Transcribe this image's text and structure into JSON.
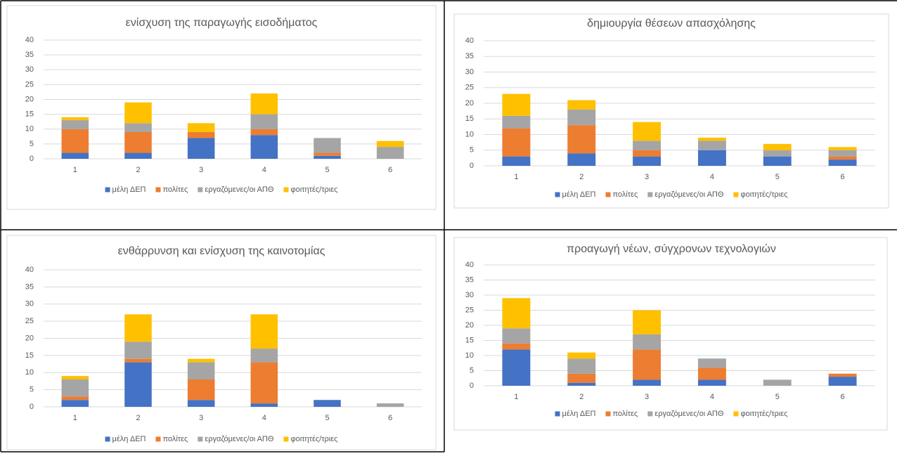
{
  "chart_data": [
    {
      "type": "bar",
      "stacked": true,
      "title": "ενίσχυση της παραγωγής εισοδήματος",
      "categories": [
        "1",
        "2",
        "3",
        "4",
        "5",
        "6"
      ],
      "series": [
        {
          "name": "μέλη ΔΕΠ",
          "color": "#4472c4",
          "values": [
            2,
            2,
            7,
            8,
            1,
            0
          ]
        },
        {
          "name": "πολίτες",
          "color": "#ed7d31",
          "values": [
            8,
            7,
            2,
            2,
            1,
            0
          ]
        },
        {
          "name": "εργαζόμενες/οι ΑΠΘ",
          "color": "#a5a5a5",
          "values": [
            3,
            3,
            0,
            5,
            5,
            4
          ]
        },
        {
          "name": "φοιτητές/τριες",
          "color": "#ffc000",
          "values": [
            1,
            7,
            3,
            7,
            0,
            2
          ]
        }
      ],
      "ylim": [
        0,
        40
      ],
      "yticks": [
        0,
        5,
        10,
        15,
        20,
        25,
        30,
        35,
        40
      ],
      "grid": true,
      "legend": "bottom"
    },
    {
      "type": "bar",
      "stacked": true,
      "title": "δημιουργία θέσεων απασχόλησης",
      "categories": [
        "1",
        "2",
        "3",
        "4",
        "5",
        "6"
      ],
      "series": [
        {
          "name": "μέλη ΔΕΠ",
          "color": "#4472c4",
          "values": [
            3,
            4,
            3,
            5,
            3,
            2
          ]
        },
        {
          "name": "πολίτες",
          "color": "#ed7d31",
          "values": [
            9,
            9,
            2,
            0,
            0,
            1
          ]
        },
        {
          "name": "εργαζόμενες/οι ΑΠΘ",
          "color": "#a5a5a5",
          "values": [
            4,
            5,
            3,
            3,
            2,
            2
          ]
        },
        {
          "name": "φοιτητές/τριες",
          "color": "#ffc000",
          "values": [
            7,
            3,
            6,
            1,
            2,
            1
          ]
        }
      ],
      "ylim": [
        0,
        40
      ],
      "yticks": [
        0,
        5,
        10,
        15,
        20,
        25,
        30,
        35,
        40
      ],
      "grid": true,
      "legend": "bottom"
    },
    {
      "type": "bar",
      "stacked": true,
      "title": "ενθάρρυνση και ενίσχυση της καινοτομίας",
      "categories": [
        "1",
        "2",
        "3",
        "4",
        "5",
        "6"
      ],
      "series": [
        {
          "name": "μέλη ΔΕΠ",
          "color": "#4472c4",
          "values": [
            2,
            13,
            2,
            1,
            2,
            0
          ]
        },
        {
          "name": "πολίτες",
          "color": "#ed7d31",
          "values": [
            1,
            1,
            6,
            12,
            0,
            0
          ]
        },
        {
          "name": "εργαζόμενες/οι ΑΠΘ",
          "color": "#a5a5a5",
          "values": [
            5,
            5,
            5,
            4,
            0,
            1
          ]
        },
        {
          "name": "φοιτητές/τριες",
          "color": "#ffc000",
          "values": [
            1,
            8,
            1,
            10,
            0,
            0
          ]
        }
      ],
      "ylim": [
        0,
        40
      ],
      "yticks": [
        0,
        5,
        10,
        15,
        20,
        25,
        30,
        35,
        40
      ],
      "grid": true,
      "legend": "bottom"
    },
    {
      "type": "bar",
      "stacked": true,
      "title": "προαγωγή νέων, σύγχρονων τεχνολογιών",
      "categories": [
        "1",
        "2",
        "3",
        "4",
        "5",
        "6"
      ],
      "series": [
        {
          "name": "μέλη ΔΕΠ",
          "color": "#4472c4",
          "values": [
            12,
            1,
            2,
            2,
            0,
            3
          ]
        },
        {
          "name": "πολίτες",
          "color": "#ed7d31",
          "values": [
            2,
            3,
            10,
            4,
            0,
            1
          ]
        },
        {
          "name": "εργαζόμενες/οι ΑΠΘ",
          "color": "#a5a5a5",
          "values": [
            5,
            5,
            5,
            3,
            2,
            0
          ]
        },
        {
          "name": "φοιτητές/τριες",
          "color": "#ffc000",
          "values": [
            10,
            2,
            8,
            0,
            0,
            0
          ]
        }
      ],
      "ylim": [
        0,
        40
      ],
      "yticks": [
        0,
        5,
        10,
        15,
        20,
        25,
        30,
        35,
        40
      ],
      "grid": true,
      "legend": "bottom"
    }
  ]
}
